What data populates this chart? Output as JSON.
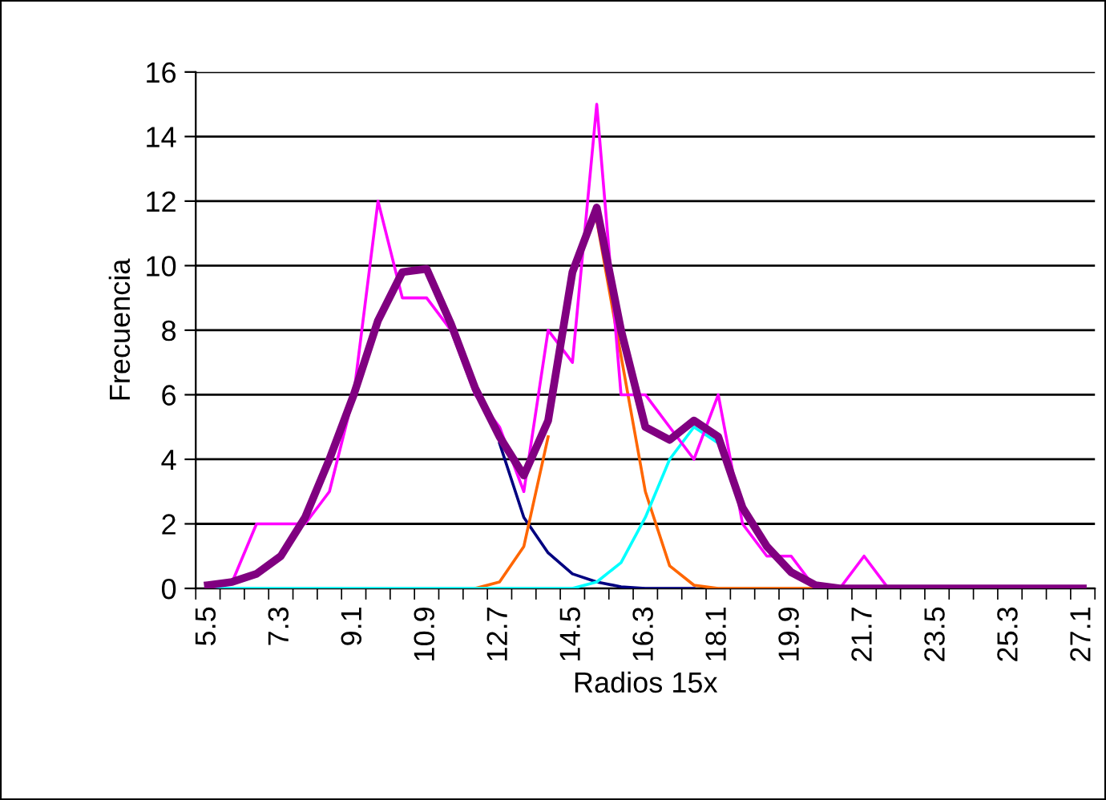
{
  "chart_data": {
    "type": "line",
    "xlabel": "Radios 15x",
    "ylabel": "Frecuencia",
    "categories": [
      "5.5",
      null,
      null,
      "7.3",
      null,
      null,
      "9.1",
      null,
      null,
      "10.9",
      null,
      null,
      "12.7",
      null,
      null,
      "14.5",
      null,
      null,
      "16.3",
      null,
      null,
      "18.1",
      null,
      null,
      "19.9",
      null,
      null,
      "21.7",
      null,
      null,
      "23.5",
      null,
      null,
      "25.3",
      null,
      null,
      "27.1"
    ],
    "ylim": [
      0,
      16
    ],
    "yticks": [
      0,
      2,
      4,
      6,
      8,
      10,
      12,
      14,
      16
    ],
    "grid": "y",
    "marker": "none",
    "line_style": "solid",
    "series": [
      {
        "color": "#000080",
        "values": [
          null,
          null,
          null,
          null,
          null,
          null,
          null,
          null,
          null,
          null,
          null,
          null,
          4.5,
          2.2,
          1.1,
          0.45,
          0.2,
          0.05,
          0,
          0,
          0,
          null,
          null,
          null,
          null,
          null,
          null,
          null,
          null,
          null,
          null,
          null,
          null,
          null,
          null,
          null,
          null
        ]
      },
      {
        "color": "#ff6600",
        "values": [
          null,
          null,
          null,
          null,
          null,
          null,
          null,
          null,
          null,
          null,
          null,
          0,
          0.2,
          1.3,
          4.7,
          null,
          11.4,
          7.2,
          3.0,
          0.7,
          0.1,
          0,
          0,
          0,
          0,
          0,
          null,
          null,
          null,
          null,
          null,
          null,
          null,
          null,
          null,
          null,
          null
        ]
      },
      {
        "color": "#00ffff",
        "values": [
          0,
          0,
          0,
          0,
          0,
          0,
          0,
          0,
          0,
          0,
          0,
          0,
          0,
          0,
          0,
          0,
          0.2,
          0.8,
          2.2,
          4.0,
          5.0,
          4.5,
          null,
          null,
          null,
          null,
          null,
          null,
          null,
          null,
          null,
          null,
          null,
          null,
          null,
          null,
          null
        ]
      },
      {
        "color": "#ff00ff",
        "values": [
          0,
          0.2,
          2,
          2,
          2,
          3,
          6,
          12,
          9,
          9,
          8,
          6,
          5,
          3,
          8,
          7,
          15,
          6,
          6,
          5,
          4,
          6,
          2,
          1,
          1,
          0,
          0,
          1,
          0,
          null,
          null,
          null,
          null,
          null,
          null,
          null,
          null
        ]
      },
      {
        "color": "#800080",
        "values": [
          0.1,
          0.2,
          0.45,
          1.0,
          2.2,
          4.0,
          6.0,
          8.3,
          9.8,
          9.9,
          8.2,
          6.2,
          4.7,
          3.5,
          5.2,
          9.8,
          11.8,
          8.0,
          5.0,
          4.6,
          5.2,
          4.7,
          2.5,
          1.3,
          0.5,
          0.1,
          0,
          0,
          0,
          0,
          0,
          0,
          0,
          0,
          0,
          0,
          0
        ]
      }
    ]
  }
}
